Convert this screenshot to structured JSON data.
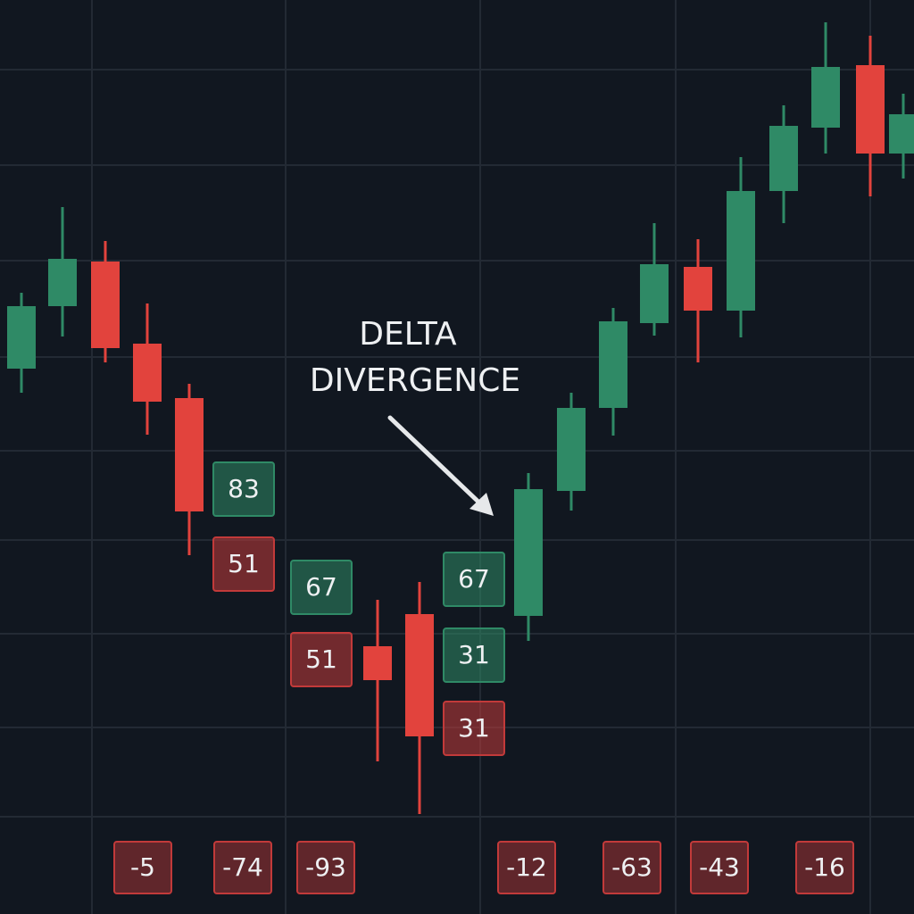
{
  "chart_data": {
    "type": "candlestick",
    "xlim": [
      0,
      1024
    ],
    "ylim": [
      0,
      1024
    ],
    "grid": true,
    "up_color": "#2f8a66",
    "down_color": "#e2433d",
    "candles": {
      "x": [
        24,
        70,
        118,
        165,
        212,
        423,
        470,
        592,
        640,
        687,
        733,
        782,
        830,
        878,
        925,
        975,
        1012
      ],
      "open": [
        611,
        681,
        731,
        639,
        578,
        300,
        336,
        334,
        474,
        567,
        662,
        725,
        676,
        810,
        881,
        951,
        852
      ],
      "high": [
        696,
        792,
        754,
        684,
        594,
        352,
        372,
        494,
        584,
        679,
        774,
        756,
        848,
        906,
        999,
        984,
        919
      ],
      "low": [
        584,
        647,
        618,
        537,
        402,
        171,
        112,
        306,
        452,
        536,
        648,
        618,
        646,
        774,
        852,
        804,
        824
      ],
      "close": [
        681,
        734,
        634,
        574,
        451,
        262,
        199,
        476,
        567,
        664,
        728,
        676,
        810,
        883,
        949,
        852,
        896
      ]
    },
    "annotation": [
      "DELTA",
      "DIVERGENCE"
    ],
    "delta_boxes": [
      {
        "value": 83,
        "color": "#2f8a66"
      },
      {
        "value": 51,
        "color": "#c23a3a"
      },
      {
        "value": 67,
        "color": "#2f8a66"
      },
      {
        "value": 51,
        "color": "#c23a3a"
      },
      {
        "value": 67,
        "color": "#2f8a66"
      },
      {
        "value": 31,
        "color": "#2f8a66"
      },
      {
        "value": 31,
        "color": "#c23a3a"
      }
    ],
    "bottom_deltas": {
      "values": [
        -5,
        -74,
        -93,
        -12,
        -63,
        -43,
        -16
      ],
      "color": "#c23a3a"
    }
  }
}
